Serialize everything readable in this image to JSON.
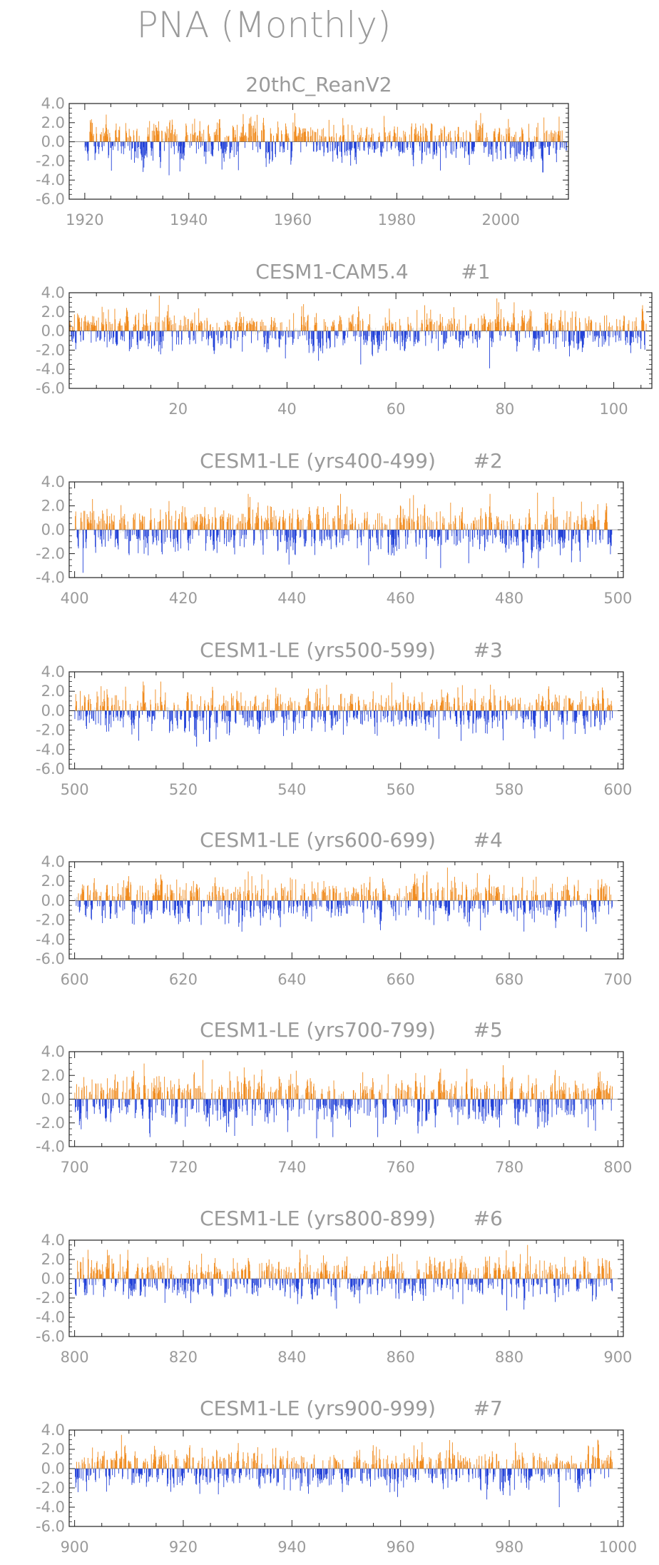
{
  "page": {
    "title": "PNA (Monthly)"
  },
  "colors": {
    "positive": "#f08a1c",
    "negative": "#2140d8",
    "text": "#9a9a9a",
    "axis": "#222222"
  },
  "chart_data": [
    {
      "type": "bar",
      "title": "20thC_ReanV2",
      "member": "",
      "x_ticks": [
        1920,
        1940,
        1960,
        1980,
        2000
      ],
      "y_ticks": [
        4,
        2,
        0,
        -2,
        -4,
        -6
      ],
      "y_tick_labels": [
        "4.0",
        "2.0",
        "0.0",
        "-2.0",
        "-4.0",
        "-6.0"
      ],
      "xlim": [
        1917,
        2013
      ],
      "ylim": [
        -6,
        4
      ],
      "x_start": 1920,
      "months": 1112,
      "notable_values": [
        {
          "x": 1936.2,
          "y": -3.5
        },
        {
          "x": 1988.3,
          "y": -3.0
        },
        {
          "x": 1977.5,
          "y": 2.7
        }
      ],
      "series": [
        {
          "values": []
        }
      ]
    },
    {
      "type": "bar",
      "title": "CESM1-CAM5.4",
      "member": "#1",
      "x_ticks": [
        20,
        40,
        60,
        80,
        100
      ],
      "y_ticks": [
        4,
        2,
        0,
        -2,
        -4,
        -6
      ],
      "y_tick_labels": [
        "4.0",
        "2.0",
        "0.0",
        "-2.0",
        "-4.0",
        "-6.0"
      ],
      "xlim": [
        0,
        107
      ],
      "ylim": [
        -6,
        4
      ],
      "x_start": 0,
      "months": 1272,
      "notable_values": [
        {
          "x": 16.5,
          "y": 3.7
        },
        {
          "x": 53.5,
          "y": -3.5
        },
        {
          "x": 78.5,
          "y": 3.4
        },
        {
          "x": 77.2,
          "y": -3.9
        }
      ],
      "series": [
        {
          "values": []
        }
      ]
    },
    {
      "type": "bar",
      "title": "CESM1-LE (yrs400-499)",
      "member": "#2",
      "x_ticks": [
        400,
        420,
        440,
        460,
        480,
        500
      ],
      "y_ticks": [
        4,
        2,
        0,
        -2,
        -4
      ],
      "y_tick_labels": [
        "4.0",
        "2.0",
        "0.0",
        "-2.0",
        "-4.0"
      ],
      "xlim": [
        399,
        501
      ],
      "ylim": [
        -4,
        4
      ],
      "x_start": 400,
      "months": 1188,
      "notable_values": [
        {
          "x": 401.5,
          "y": -3.6
        },
        {
          "x": 485.2,
          "y": 3.1
        },
        {
          "x": 467.3,
          "y": -3.2
        }
      ],
      "series": [
        {
          "values": []
        }
      ]
    },
    {
      "type": "bar",
      "title": "CESM1-LE (yrs500-599)",
      "member": "#3",
      "x_ticks": [
        500,
        520,
        540,
        560,
        580,
        600
      ],
      "y_ticks": [
        4,
        2,
        0,
        -2,
        -4,
        -6
      ],
      "y_tick_labels": [
        "4.0",
        "2.0",
        "0.0",
        "-2.0",
        "-4.0",
        "-6.0"
      ],
      "xlim": [
        499,
        601
      ],
      "ylim": [
        -6,
        4
      ],
      "x_start": 500,
      "months": 1188,
      "notable_values": [
        {
          "x": 522.4,
          "y": -3.7
        },
        {
          "x": 515.8,
          "y": 3.0
        },
        {
          "x": 558.3,
          "y": 2.9
        }
      ],
      "series": [
        {
          "values": []
        }
      ]
    },
    {
      "type": "bar",
      "title": "CESM1-LE (yrs600-699)",
      "member": "#4",
      "x_ticks": [
        600,
        620,
        640,
        660,
        680,
        700
      ],
      "y_ticks": [
        4,
        2,
        0,
        -2,
        -4,
        -6
      ],
      "y_tick_labels": [
        "4.0",
        "2.0",
        "0.0",
        "-2.0",
        "-4.0",
        "-6.0"
      ],
      "xlim": [
        599,
        701
      ],
      "ylim": [
        -6,
        4
      ],
      "x_start": 600,
      "months": 1188,
      "notable_values": [
        {
          "x": 668.6,
          "y": 3.4
        },
        {
          "x": 694.2,
          "y": -3.2
        }
      ],
      "series": [
        {
          "values": []
        }
      ]
    },
    {
      "type": "bar",
      "title": "CESM1-LE (yrs700-799)",
      "member": "#5",
      "x_ticks": [
        700,
        720,
        740,
        760,
        780,
        800
      ],
      "y_ticks": [
        4,
        2,
        0,
        -2,
        -4
      ],
      "y_tick_labels": [
        "4.0",
        "2.0",
        "0.0",
        "-2.0",
        "-4.0"
      ],
      "xlim": [
        699,
        801
      ],
      "ylim": [
        -4,
        4
      ],
      "x_start": 700,
      "months": 1188,
      "notable_values": [
        {
          "x": 723.6,
          "y": 3.3
        },
        {
          "x": 729.4,
          "y": -3.1
        },
        {
          "x": 744.5,
          "y": -3.3
        }
      ],
      "series": [
        {
          "values": []
        }
      ]
    },
    {
      "type": "bar",
      "title": "CESM1-LE (yrs800-899)",
      "member": "#6",
      "x_ticks": [
        800,
        820,
        840,
        860,
        880,
        900
      ],
      "y_ticks": [
        4,
        2,
        0,
        -2,
        -4,
        -6
      ],
      "y_tick_labels": [
        "4.0",
        "2.0",
        "0.0",
        "-2.0",
        "-4.0",
        "-6.0"
      ],
      "xlim": [
        799,
        901
      ],
      "ylim": [
        -6,
        4
      ],
      "x_start": 800,
      "months": 1188,
      "notable_values": [
        {
          "x": 883.3,
          "y": 3.5
        },
        {
          "x": 848.2,
          "y": -3.1
        },
        {
          "x": 879.5,
          "y": -3.3
        }
      ],
      "series": [
        {
          "values": []
        }
      ]
    },
    {
      "type": "bar",
      "title": "CESM1-LE (yrs900-999)",
      "member": "#7",
      "x_ticks": [
        900,
        920,
        940,
        960,
        980,
        1000
      ],
      "y_ticks": [
        4,
        2,
        0,
        -2,
        -4,
        -6
      ],
      "y_tick_labels": [
        "4.0",
        "2.0",
        "0.0",
        "-2.0",
        "-4.0",
        "-6.0"
      ],
      "xlim": [
        899,
        1001
      ],
      "ylim": [
        -6,
        4
      ],
      "x_start": 900,
      "months": 1188,
      "notable_values": [
        {
          "x": 908.6,
          "y": 3.5
        },
        {
          "x": 989.2,
          "y": -4.0
        }
      ],
      "series": [
        {
          "values": []
        }
      ]
    }
  ]
}
